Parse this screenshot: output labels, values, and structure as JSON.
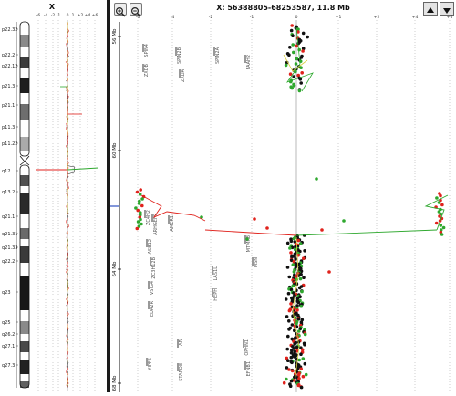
{
  "left_panel": {
    "chromosome": "X",
    "scale_ticks": [
      "-6",
      "-4",
      "-2",
      "-1",
      "0",
      "1",
      "+2",
      "+4",
      "+6"
    ],
    "bands": [
      "p22.32",
      "p22.2",
      "p22.12",
      "p21.3",
      "p21.1",
      "p11.3",
      "p11.22",
      "q12",
      "q13.2",
      "q21.1",
      "q21.31",
      "q21.33",
      "q22.2",
      "q23",
      "q25",
      "q26.2",
      "q27.1",
      "q27.3"
    ]
  },
  "right_panel": {
    "range_label": "X: 56388805-68253587, 11.8 Mb",
    "zoom_in_icon": "zoom-in-icon",
    "zoom_out_icon": "zoom-out-icon",
    "up_icon": "triangle-up-icon",
    "down_icon": "triangle-down-icon",
    "scale_ticks": [
      "-6",
      "-4",
      "-2",
      "-1",
      "0",
      "+1",
      "+2",
      "+4",
      "+6"
    ],
    "y_ticks": [
      "56 Mb",
      "60 Mb",
      "64 Mb",
      "68 Mb"
    ],
    "genes": [
      {
        "label": "SPIN4"
      },
      {
        "label": "SPIN2B"
      },
      {
        "label": "SPIN2A"
      },
      {
        "label": "ZXDB"
      },
      {
        "label": "ZXDA"
      },
      {
        "label": "FAAH2"
      },
      {
        "label": "ZC4H2"
      },
      {
        "label": "ARHGEF9"
      },
      {
        "label": "AMER1"
      },
      {
        "label": "MTMR8"
      },
      {
        "label": "ASB12"
      },
      {
        "label": "ZC3H12B"
      },
      {
        "label": "LAS1L"
      },
      {
        "label": "MSN"
      },
      {
        "label": "VSIG4"
      },
      {
        "label": "HEPH"
      },
      {
        "label": "EDA2R"
      },
      {
        "label": "AR"
      },
      {
        "label": "OPHN1"
      },
      {
        "label": "YIPF6"
      },
      {
        "label": "STARD8"
      },
      {
        "label": "EFNB1"
      }
    ],
    "colors": {
      "red": "#e0221c",
      "green": "#2ea82e",
      "black": "#111111",
      "yellow": "#d8d040",
      "blue": "#3050c0"
    }
  }
}
